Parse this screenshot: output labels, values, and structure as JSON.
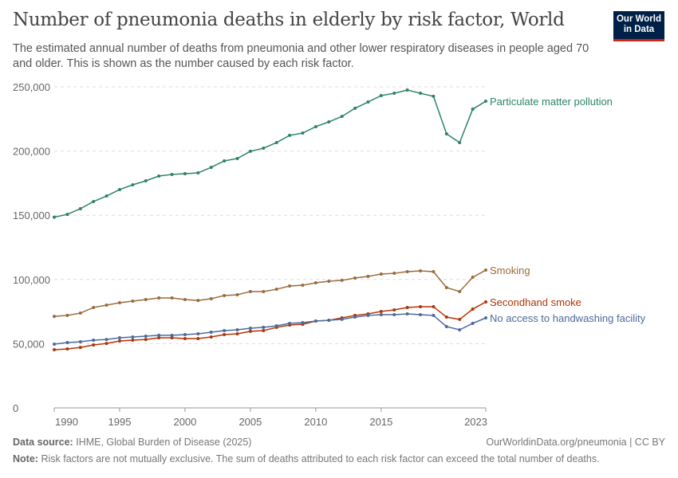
{
  "header": {
    "title": "Number of pneumonia deaths in elderly by risk factor, World",
    "subtitle": "The estimated annual number of deaths from pneumonia and other lower respiratory diseases in people aged 70 and older. This is shown as the number caused by each risk factor.",
    "logo_line1": "Our World",
    "logo_line2": "in Data"
  },
  "footer": {
    "source_label": "Data source:",
    "source_text": "IHME, Global Burden of Disease (2025)",
    "url": "OurWorldinData.org/pneumonia | CC BY",
    "note_label": "Note:",
    "note_text": "Risk factors are not mutually exclusive. The sum of deaths attributed to each risk factor can exceed the total number of deaths."
  },
  "chart_data": {
    "type": "line",
    "title": "Number of pneumonia deaths in elderly by risk factor, World",
    "xlim": [
      1990,
      2023
    ],
    "ylim": [
      0,
      250000
    ],
    "x_ticks": [
      "1990",
      "1995",
      "2000",
      "2005",
      "2010",
      "2015",
      "2023"
    ],
    "y_ticks": [
      "0",
      "50,000",
      "100,000",
      "150,000",
      "200,000",
      "250,000"
    ],
    "grid": "horizontal dashed",
    "legend": "inline labels at line ends (right)",
    "x": [
      1990,
      1991,
      1992,
      1993,
      1994,
      1995,
      1996,
      1997,
      1998,
      1999,
      2000,
      2001,
      2002,
      2003,
      2004,
      2005,
      2006,
      2007,
      2008,
      2009,
      2010,
      2011,
      2012,
      2013,
      2014,
      2015,
      2016,
      2017,
      2018,
      2019,
      2020,
      2021,
      2022,
      2023
    ],
    "series": [
      {
        "name": "Particulate matter pollution",
        "color": "#2c8465",
        "values": [
          148500,
          150700,
          155100,
          160700,
          165000,
          170000,
          173700,
          176800,
          180500,
          181800,
          182400,
          183000,
          187300,
          192300,
          194200,
          199800,
          202200,
          206600,
          212200,
          214000,
          219000,
          222700,
          227000,
          233300,
          238200,
          243200,
          245000,
          247500,
          245000,
          242600,
          213400,
          206600,
          232600,
          238800
        ]
      },
      {
        "name": "Smoking",
        "color": "#9a6b3c",
        "values": [
          71300,
          72000,
          73800,
          78200,
          80000,
          81900,
          83100,
          84400,
          85600,
          85600,
          84400,
          83700,
          85000,
          87500,
          88100,
          90600,
          90600,
          92400,
          94900,
          95500,
          97400,
          98600,
          99300,
          101100,
          102400,
          104200,
          104800,
          106100,
          106700,
          106100,
          93700,
          90600,
          101700,
          107300
        ]
      },
      {
        "name": "Secondhand smoke",
        "color": "#b13507",
        "values": [
          45300,
          45900,
          47100,
          49000,
          50200,
          52100,
          52700,
          53300,
          54600,
          54600,
          54000,
          54000,
          55200,
          57100,
          57700,
          59600,
          60200,
          62700,
          64500,
          65100,
          67600,
          68200,
          70100,
          72000,
          73200,
          75100,
          76300,
          78200,
          78800,
          78800,
          70700,
          68900,
          76900,
          82500
        ]
      },
      {
        "name": "No access to handwashing facility",
        "color": "#4c6a9c",
        "values": [
          49600,
          50900,
          51500,
          52700,
          53300,
          54600,
          55200,
          55800,
          56500,
          56500,
          57100,
          57700,
          58900,
          60200,
          60800,
          62000,
          62700,
          63900,
          65800,
          66400,
          67600,
          68200,
          68900,
          70700,
          72000,
          72600,
          72600,
          73200,
          72600,
          72000,
          63300,
          60800,
          65800,
          70100
        ]
      }
    ]
  }
}
